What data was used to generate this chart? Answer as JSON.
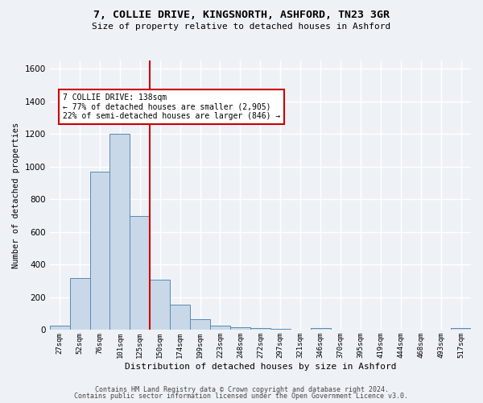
{
  "title_line1": "7, COLLIE DRIVE, KINGSNORTH, ASHFORD, TN23 3GR",
  "title_line2": "Size of property relative to detached houses in Ashford",
  "xlabel": "Distribution of detached houses by size in Ashford",
  "ylabel": "Number of detached properties",
  "categories": [
    "27sqm",
    "52sqm",
    "76sqm",
    "101sqm",
    "125sqm",
    "150sqm",
    "174sqm",
    "199sqm",
    "223sqm",
    "248sqm",
    "272sqm",
    "297sqm",
    "321sqm",
    "346sqm",
    "370sqm",
    "395sqm",
    "419sqm",
    "444sqm",
    "468sqm",
    "493sqm",
    "517sqm"
  ],
  "values": [
    25,
    320,
    970,
    1200,
    700,
    310,
    155,
    65,
    25,
    15,
    10,
    5,
    0,
    10,
    0,
    0,
    0,
    0,
    0,
    0,
    10
  ],
  "bar_color": "#c8d8e8",
  "bar_edge_color": "#5a8ab0",
  "vline_x": 4.5,
  "annotation_text": "7 COLLIE DRIVE: 138sqm\n← 77% of detached houses are smaller (2,905)\n22% of semi-detached houses are larger (846) →",
  "annotation_box_color": "#ffffff",
  "annotation_box_edge": "#cc0000",
  "vline_color": "#cc0000",
  "ylim": [
    0,
    1650
  ],
  "yticks": [
    0,
    200,
    400,
    600,
    800,
    1000,
    1200,
    1400,
    1600
  ],
  "background_color": "#eef2f7",
  "grid_color": "#ffffff",
  "footer_line1": "Contains HM Land Registry data © Crown copyright and database right 2024.",
  "footer_line2": "Contains public sector information licensed under the Open Government Licence v3.0."
}
